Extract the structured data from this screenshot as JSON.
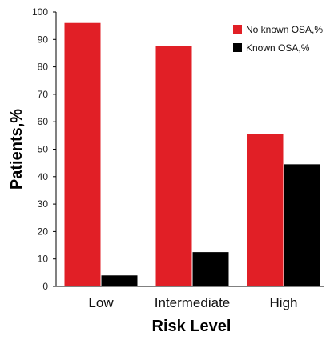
{
  "chart_data": {
    "type": "bar",
    "categories": [
      "Low",
      "Intermediate",
      "High"
    ],
    "series": [
      {
        "name": "No known OSA,%",
        "values": [
          96,
          87.5,
          55.5
        ],
        "color": "#e11f26"
      },
      {
        "name": "Known OSA,%",
        "values": [
          4,
          12.5,
          44.5
        ],
        "color": "#000000"
      }
    ],
    "xlabel": "Risk Level",
    "ylabel": "Patients,%",
    "ylim": [
      0,
      100
    ],
    "yticks": [
      0,
      10,
      20,
      30,
      40,
      50,
      60,
      70,
      80,
      90,
      100
    ],
    "grid": false,
    "legend_position": "top-right"
  }
}
